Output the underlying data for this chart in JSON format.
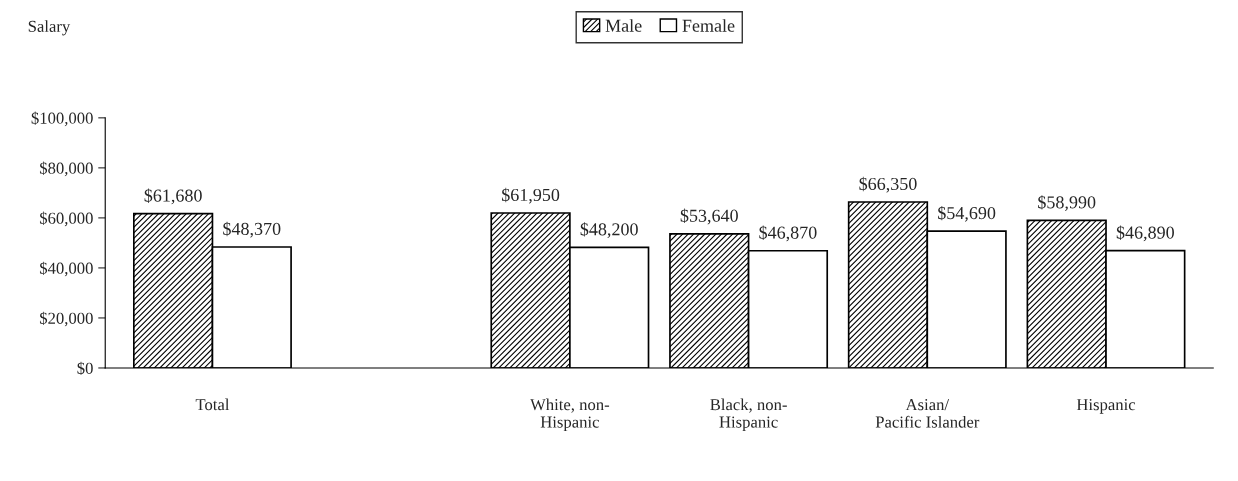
{
  "chart_data": {
    "type": "bar",
    "ylabel": "Salary",
    "categories": [
      "Total",
      null,
      "White, non-\nHispanic",
      "Black, non-\nHispanic",
      "Asian/\nPacific Islander",
      "Hispanic"
    ],
    "series": [
      {
        "name": "Male",
        "color": "#000000",
        "values": [
          61680,
          null,
          61950,
          53640,
          66350,
          58990
        ],
        "value_labels": [
          "$61,680",
          null,
          "$61,950",
          "$53,640",
          "$66,350",
          "$58,990"
        ]
      },
      {
        "name": "Female",
        "color": "#000000",
        "values": [
          48370,
          null,
          48200,
          46870,
          54690,
          46890
        ],
        "value_labels": [
          "$48,370",
          null,
          "$48,200",
          "$46,870",
          "$54,690",
          "$46,890"
        ]
      }
    ],
    "ylim": [
      0,
      100000
    ],
    "yticks": [
      {
        "value": 0,
        "label": "$0"
      },
      {
        "value": 20000,
        "label": "$20,000"
      },
      {
        "value": 40000,
        "label": "$40,000"
      },
      {
        "value": 60000,
        "label": "$60,000"
      },
      {
        "value": 80000,
        "label": "$80,000"
      },
      {
        "value": 100000,
        "label": "$100,000"
      }
    ],
    "grid": false,
    "legend": "top"
  }
}
